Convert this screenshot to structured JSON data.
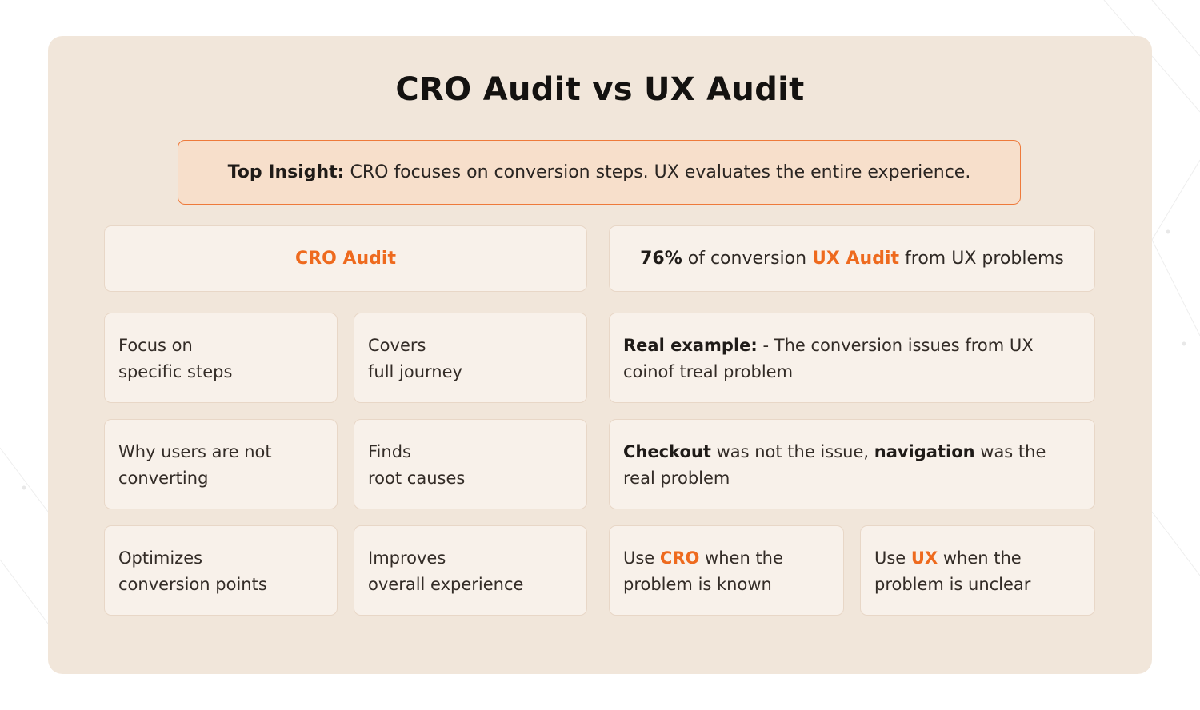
{
  "title": "CRO Audit vs UX Audit",
  "insight": {
    "label": "Top Insight:",
    "text": "CRO focuses on conversion steps. UX evaluates the entire experience."
  },
  "cro_header": "CRO Audit",
  "ux_header": {
    "stat": "76%",
    "text_before": "of conversion",
    "highlight": "UX Audit",
    "text_after": "from UX problems"
  },
  "cro_column": [
    [
      "Focus on",
      "specific steps"
    ],
    [
      "Why users are not",
      "converting"
    ],
    [
      "Optimizes",
      "conversion points"
    ]
  ],
  "ux_column": [
    [
      "Covers",
      "full journey"
    ],
    [
      "Finds",
      "root causes"
    ],
    [
      "Improves",
      "overall experience"
    ]
  ],
  "example": {
    "label": "Real example:",
    "line1_rest": "- The conversion issues from UX",
    "line2": "coinof treal problem"
  },
  "finding": {
    "word1": "Checkout",
    "mid": "was not the issue,",
    "word2": "navigation",
    "end": "was the",
    "line2": "real problem"
  },
  "use_cro": {
    "prefix": "Use",
    "highlight": "CRO",
    "suffix": "when the",
    "line2": "problem is known"
  },
  "use_ux": {
    "prefix": "Use",
    "highlight": "UX",
    "suffix": "when the",
    "line2": "problem is unclear"
  },
  "colors": {
    "accent": "#ee6a1e",
    "panel": "#f1e6da",
    "card": "#f8f1ea",
    "insight_bg": "#f7dfcb",
    "insight_border": "#ee7a3b"
  }
}
